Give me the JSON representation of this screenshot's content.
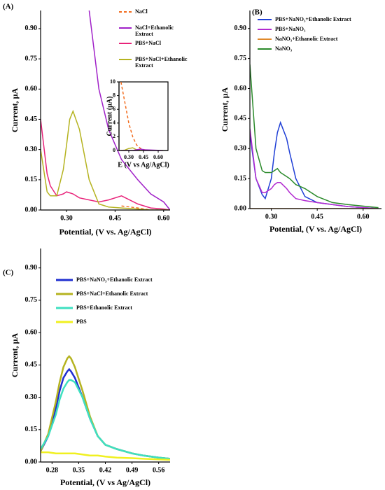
{
  "chart_data": [
    {
      "type": "line",
      "panel_label": "(A)",
      "y_label": "Current, µA",
      "x_label": "Potential, (V vs. Ag/AgCl)",
      "xlim": [
        0.22,
        0.62
      ],
      "ylim": [
        0,
        0.99
      ],
      "xticks": [
        {
          "value": 0.3,
          "label": "0.30"
        },
        0.45,
        {
          "value": 0.6,
          "label": "0.60"
        }
      ],
      "yticks": [
        {
          "value": 0,
          "label": "0.00"
        },
        0.15,
        {
          "value": 0.3,
          "label": "0.30"
        },
        0.45,
        {
          "value": 0.6,
          "label": "0.60"
        },
        0.75,
        {
          "value": 0.9,
          "label": "0.90"
        }
      ],
      "x": [
        0.22,
        0.24,
        0.25,
        0.27,
        0.29,
        0.3,
        0.31,
        0.32,
        0.34,
        0.37,
        0.4,
        0.43,
        0.47,
        0.52,
        0.56,
        0.6,
        0.62
      ],
      "series": [
        {
          "name": "NaCl",
          "color": "#f26b1d",
          "linestyle": "dashed",
          "values": [
            null,
            null,
            null,
            null,
            null,
            null,
            null,
            null,
            null,
            null,
            null,
            null,
            0.02,
            0.01,
            0,
            0,
            0
          ]
        },
        {
          "name": "NaCl+Ethanolic Extract",
          "color": "#a020c8",
          "values": [
            null,
            null,
            null,
            null,
            null,
            null,
            null,
            null,
            null,
            0.99,
            0.6,
            0.4,
            0.25,
            0.15,
            0.08,
            0.04,
            0
          ]
        },
        {
          "name": "PBS+NaCl",
          "color": "#e8237a",
          "values": [
            0.45,
            0.18,
            0.12,
            0.07,
            0.08,
            0.09,
            0.085,
            0.08,
            0.06,
            0.05,
            0.04,
            0.05,
            0.07,
            0.03,
            0.01,
            0.005,
            0
          ]
        },
        {
          "name": "PBS+NaCl+Ethanolic Extract",
          "color": "#b5b320",
          "values": [
            0.3,
            0.09,
            0.07,
            0.07,
            0.2,
            0.32,
            0.45,
            0.49,
            0.4,
            0.15,
            0.03,
            0.015,
            0.01,
            0.005,
            0,
            0,
            0
          ]
        }
      ]
    },
    {
      "type": "line",
      "panel_label": "(B)",
      "y_label": "Current, µA",
      "x_label": "Potential, (V vs. Ag/AgCl)",
      "xlim": [
        0.23,
        0.66
      ],
      "ylim": [
        0,
        0.99
      ],
      "xticks": [
        {
          "value": 0.3,
          "label": "0.30"
        },
        0.45,
        {
          "value": 0.6,
          "label": "0.60"
        }
      ],
      "yticks": [
        {
          "value": 0,
          "label": "0.00"
        },
        0.15,
        {
          "value": 0.3,
          "label": "0.30"
        },
        0.45,
        {
          "value": 0.6,
          "label": "0.60"
        },
        0.75,
        {
          "value": 0.9,
          "label": "0.90"
        }
      ],
      "x": [
        0.23,
        0.25,
        0.27,
        0.28,
        0.3,
        0.31,
        0.32,
        0.33,
        0.35,
        0.36,
        0.38,
        0.41,
        0.45,
        0.5,
        0.55,
        0.65
      ],
      "series": [
        {
          "name": "PBS+NaNO₃+Ethanolic Extract",
          "color": "#1f3fd6",
          "values": [
            0.37,
            0.15,
            0.07,
            0.05,
            0.15,
            0.28,
            0.38,
            0.43,
            0.35,
            0.28,
            0.15,
            0.06,
            0.03,
            0.02,
            0.01,
            0
          ]
        },
        {
          "name": "PBS+NaNO₃",
          "color": "#b22ad0",
          "values": [
            0.4,
            0.15,
            0.08,
            0.08,
            0.1,
            0.12,
            0.13,
            0.13,
            0.1,
            0.08,
            0.05,
            0.04,
            0.03,
            0.02,
            0.01,
            0
          ]
        },
        {
          "name": "NaNO₃+Ethanolic Extract",
          "color": "#e0892a",
          "values": [
            0,
            0,
            0,
            0,
            0,
            0,
            0,
            0,
            0,
            0,
            0,
            0,
            0,
            0,
            0,
            0
          ]
        },
        {
          "name": "NaNO₃",
          "color": "#2a8a2a",
          "values": [
            0.72,
            0.3,
            0.19,
            0.18,
            0.18,
            0.19,
            0.2,
            0.18,
            0.16,
            0.15,
            0.12,
            0.1,
            0.06,
            0.03,
            0.02,
            0.005
          ]
        }
      ]
    },
    {
      "type": "line",
      "panel_label": "(C)",
      "y_label": "Current, µA",
      "x_label": "Potential, (V vs Ag/AgCl)",
      "xlim": [
        0.25,
        0.59
      ],
      "ylim": [
        0,
        0.99
      ],
      "xticks": [
        0.28,
        0.35,
        0.42,
        0.49,
        0.56
      ],
      "yticks": [
        {
          "value": 0,
          "label": "0.00"
        },
        0.15,
        {
          "value": 0.3,
          "label": "0.30"
        },
        0.45,
        {
          "value": 0.6,
          "label": "0.60"
        },
        0.75,
        {
          "value": 0.9,
          "label": "0.90"
        }
      ],
      "x": [
        0.25,
        0.27,
        0.29,
        0.3,
        0.31,
        0.32,
        0.325,
        0.33,
        0.34,
        0.36,
        0.38,
        0.4,
        0.42,
        0.45,
        0.49,
        0.52,
        0.56,
        0.59
      ],
      "series": [
        {
          "name": "PBS+NaNO₃+Ethanolic Extract",
          "color": "#1f2fd0",
          "values": [
            0.05,
            0.12,
            0.25,
            0.33,
            0.39,
            0.42,
            0.43,
            0.42,
            0.39,
            0.3,
            0.2,
            0.12,
            0.08,
            0.06,
            0.04,
            0.03,
            0.02,
            0.015
          ]
        },
        {
          "name": "PBS+NaCl+Ethanolic Extract",
          "color": "#b5b320",
          "values": [
            0.05,
            0.13,
            0.28,
            0.37,
            0.44,
            0.48,
            0.49,
            0.48,
            0.44,
            0.33,
            0.21,
            0.12,
            0.08,
            0.06,
            0.04,
            0.03,
            0.02,
            0.015
          ]
        },
        {
          "name": "PBS+Ethanolic Extract",
          "color": "#3ee0c0",
          "values": [
            0.06,
            0.12,
            0.22,
            0.29,
            0.34,
            0.37,
            0.38,
            0.38,
            0.37,
            0.3,
            0.2,
            0.12,
            0.08,
            0.06,
            0.04,
            0.03,
            0.02,
            0.015
          ]
        },
        {
          "name": "PBS",
          "color": "#f0f020",
          "values": [
            0.045,
            0.045,
            0.04,
            0.04,
            0.04,
            0.04,
            0.04,
            0.04,
            0.04,
            0.035,
            0.03,
            0.03,
            0.025,
            0.02,
            0.018,
            0.015,
            0.012,
            0.01
          ]
        }
      ]
    },
    {
      "type": "line",
      "y_label": "Current (µA)",
      "x_label": "E (V vs Ag/AgCl)",
      "xlim": [
        0.2,
        0.7
      ],
      "ylim": [
        0,
        10
      ],
      "xticks": [
        {
          "value": 0.3,
          "label": "0.30"
        },
        0.45,
        {
          "value": 0.6,
          "label": "0.60"
        }
      ],
      "yticks": [
        0,
        2,
        4,
        6,
        8,
        10
      ],
      "x": [
        0.22,
        0.26,
        0.3,
        0.34,
        0.38,
        0.42,
        0.46,
        0.55,
        0.65
      ],
      "series": [
        {
          "color": "#f26b1d",
          "linestyle": "dashed",
          "values": [
            10,
            7,
            4,
            2,
            0.8,
            0.3,
            0.1,
            0,
            0
          ]
        },
        {
          "color": "#b5b320",
          "values": [
            0,
            0.05,
            0.3,
            0.4,
            0.1,
            0,
            0,
            0,
            0
          ]
        },
        {
          "color": "#a020c8",
          "values": [
            0,
            0,
            0,
            0,
            0.1,
            0.2,
            0.1,
            0.05,
            0
          ]
        }
      ]
    }
  ]
}
